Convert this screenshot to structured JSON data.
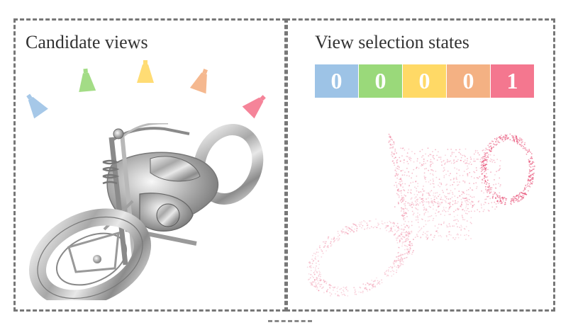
{
  "left_panel": {
    "title": "Candidate views"
  },
  "right_panel": {
    "title": "View selection states"
  },
  "views": [
    {
      "color": "#9dc3e6",
      "icon": "camera-frustum-icon"
    },
    {
      "color": "#9ad97a",
      "icon": "camera-frustum-icon"
    },
    {
      "color": "#ffd966",
      "icon": "camera-frustum-icon"
    },
    {
      "color": "#f4b183",
      "icon": "camera-frustum-icon"
    },
    {
      "color": "#f4778f",
      "icon": "camera-frustum-icon"
    }
  ],
  "states": [
    {
      "value": "0",
      "color": "#9dc3e6"
    },
    {
      "value": "0",
      "color": "#9ad97a"
    },
    {
      "value": "0",
      "color": "#ffd966"
    },
    {
      "value": "0",
      "color": "#f4b183"
    },
    {
      "value": "1",
      "color": "#f4778f"
    }
  ],
  "motorcycle_icon": "motorcycle-mesh-icon",
  "pointcloud_icon": "motorcycle-point-cloud-icon",
  "pointcloud_color": "#e8557a"
}
